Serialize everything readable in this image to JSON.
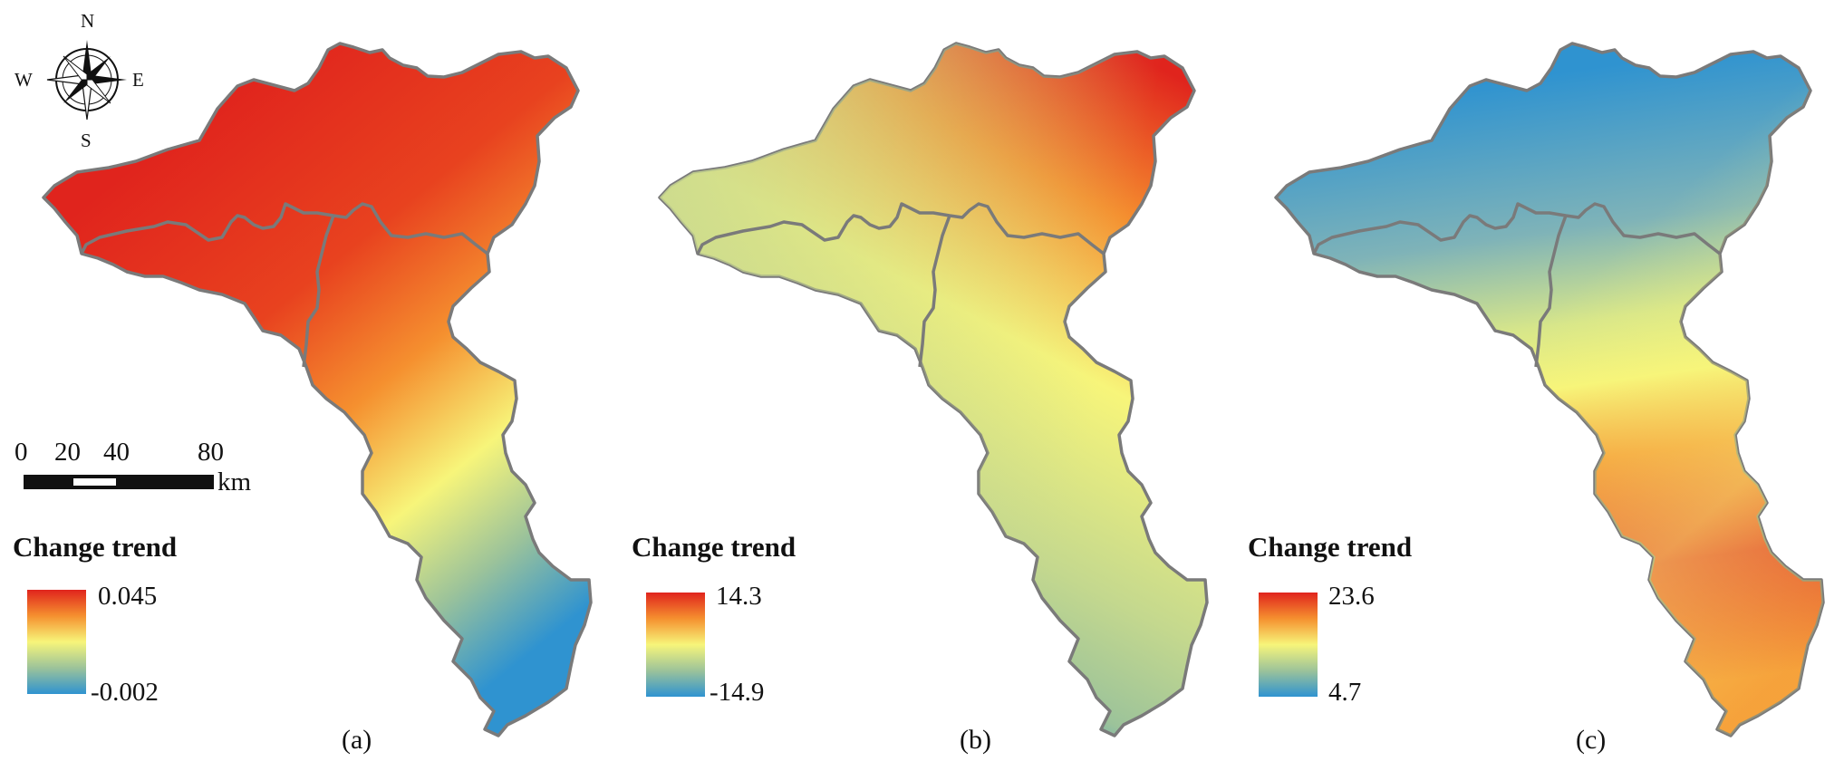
{
  "colors": {
    "ramp_high": "#e0241d",
    "ramp_mid_high": "#f5902f",
    "ramp_mid": "#f7f57a",
    "ramp_mid_low": "#9cc39a",
    "ramp_low": "#2f93d0",
    "boundary": "#7a7a7a"
  },
  "compass": {
    "north": "N",
    "south": "S",
    "east": "E",
    "west": "W"
  },
  "scale_bar": {
    "ticks": [
      "0",
      "20",
      "40",
      "80"
    ],
    "unit": "km"
  },
  "panels": [
    {
      "label": "(a)",
      "legend_title": "Change trend",
      "legend_max": "0.045",
      "legend_min": "-0.002"
    },
    {
      "label": "(b)",
      "legend_title": "Change trend",
      "legend_max": "14.3",
      "legend_min": "-14.9"
    },
    {
      "label": "(c)",
      "legend_title": "Change trend",
      "legend_max": "23.6",
      "legend_min": "4.7"
    }
  ]
}
